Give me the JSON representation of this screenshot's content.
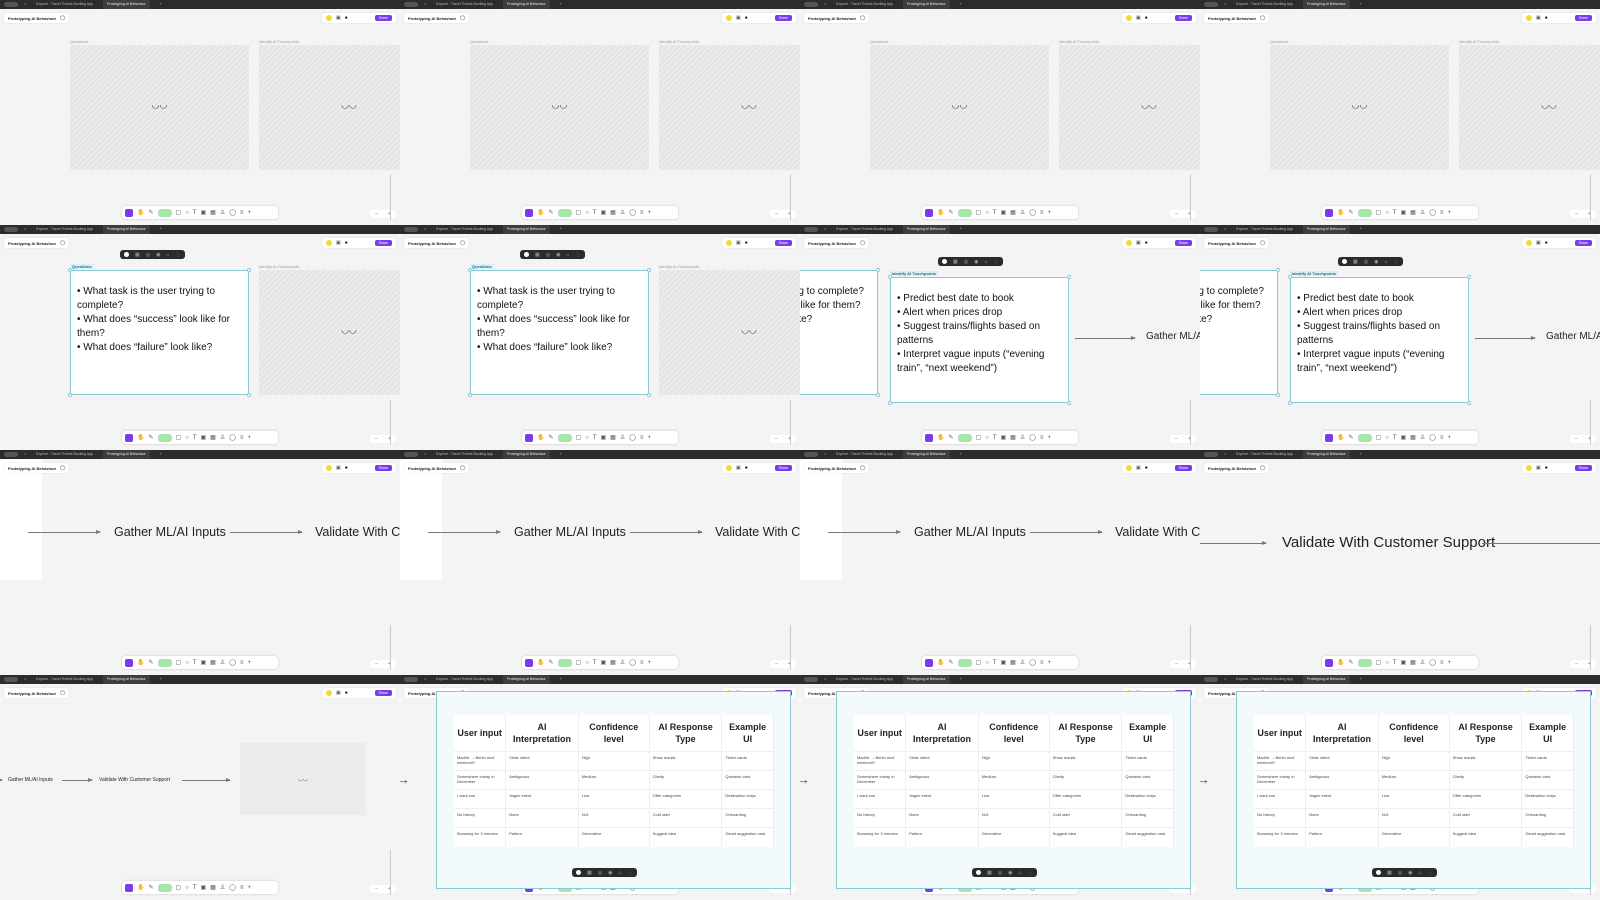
{
  "app": {
    "tabs": [
      "Explore - Travel Tickets Booking App",
      "Prototyping AI Behaviour"
    ],
    "file_name": "Prototyping AI Behaviour",
    "share_label": "Share",
    "colors": {
      "accent": "#7c3aed",
      "selection": "#8ccad8",
      "tabbar": "#2c2c2c",
      "canvas": "#f4f4f4"
    }
  },
  "frames": {
    "questions_label": "Questions",
    "touchpoints_label": "Identify AI Touchpoints"
  },
  "questions": [
    "What task is the user trying to complete?",
    "What does “success” look like for them?",
    "What does “failure” look like?"
  ],
  "touchpoints": [
    "Predict best date to book",
    "Alert when prices drop",
    "Suggest trains/flights based on patterns",
    "Interpret vague inputs (“evening train”, “next weekend”)"
  ],
  "flow": {
    "gather": "Gather ML/AI Inputs",
    "validate": "Validate With Customer Support"
  },
  "table": {
    "headers": [
      "User input",
      "AI Interpretation",
      "Confidence level",
      "AI Response Type",
      "Example UI"
    ],
    "rows": [
      [
        "Madrid → Berlin next weekend?",
        "Clear intent",
        "High",
        "Show results",
        "Ticket cards"
      ],
      [
        "Somewhere cheap in December",
        "Ambiguous",
        "Medium",
        "Clarify",
        "Question card"
      ],
      [
        "I want sun",
        "Vague intent",
        "Low",
        "Offer categories",
        "Destination chips"
      ],
      [
        "No history",
        "None",
        "N/A",
        "Cold start",
        "Onboarding"
      ],
      [
        "Browsing for 3 minutes",
        "Pattern",
        "Generative",
        "Suggest idea",
        "Smart suggestion card"
      ]
    ]
  },
  "icons": [
    "home-icon",
    "file-icon",
    "close-icon",
    "plus-icon",
    "closed-eye-icon",
    "move-tool-icon",
    "hand-tool-icon",
    "pen-icon",
    "rectangle-icon",
    "text-icon",
    "frame-icon",
    "table-icon",
    "stamp-icon",
    "ellipse-icon",
    "grid-icon",
    "zoom-out-icon",
    "zoom-in-icon"
  ]
}
